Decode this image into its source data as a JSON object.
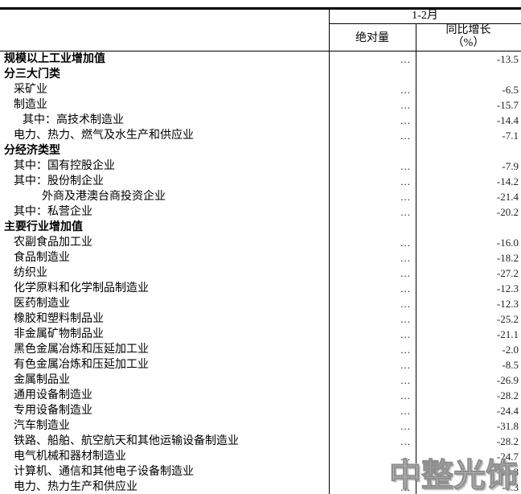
{
  "header": {
    "period": "1-2月",
    "col_absolute": "绝对量",
    "col_growth_line1": "同比增长",
    "col_growth_line2": "（%）"
  },
  "table": {
    "rows": [
      {
        "label": "规模以上工业增加值",
        "indent": 0,
        "bold": true,
        "abs": "...",
        "growth": "-13.5"
      },
      {
        "label": "分三大门类",
        "indent": 0,
        "bold": true,
        "abs": "",
        "growth": ""
      },
      {
        "label": "采矿业",
        "indent": 1,
        "bold": false,
        "abs": "...",
        "growth": "-6.5"
      },
      {
        "label": "制造业",
        "indent": 1,
        "bold": false,
        "abs": "...",
        "growth": "-15.7"
      },
      {
        "label": "其中：高技术制造业",
        "indent": 2,
        "bold": false,
        "abs": "...",
        "growth": "-14.4"
      },
      {
        "label": "电力、热力、燃气及水生产和供应业",
        "indent": 1,
        "bold": false,
        "abs": "...",
        "growth": "-7.1"
      },
      {
        "label": "分经济类型",
        "indent": 0,
        "bold": true,
        "abs": "",
        "growth": ""
      },
      {
        "label": "其中：国有控股企业",
        "indent": 1,
        "bold": false,
        "abs": "...",
        "growth": "-7.9"
      },
      {
        "label": "其中：股份制企业",
        "indent": 1,
        "bold": false,
        "abs": "...",
        "growth": "-14.2"
      },
      {
        "label": "外商及港澳台商投资企业",
        "indent": 3,
        "bold": false,
        "abs": "...",
        "growth": "-21.4"
      },
      {
        "label": "其中：私营企业",
        "indent": 1,
        "bold": false,
        "abs": "...",
        "growth": "-20.2"
      },
      {
        "label": "主要行业增加值",
        "indent": 0,
        "bold": true,
        "abs": "",
        "growth": ""
      },
      {
        "label": "农副食品加工业",
        "indent": 1,
        "bold": false,
        "abs": "...",
        "growth": "-16.0"
      },
      {
        "label": "食品制造业",
        "indent": 1,
        "bold": false,
        "abs": "...",
        "growth": "-18.2"
      },
      {
        "label": "纺织业",
        "indent": 1,
        "bold": false,
        "abs": "...",
        "growth": "-27.2"
      },
      {
        "label": "化学原料和化学制品制造业",
        "indent": 1,
        "bold": false,
        "abs": "...",
        "growth": "-12.3"
      },
      {
        "label": "医药制造业",
        "indent": 1,
        "bold": false,
        "abs": "...",
        "growth": "-12.3"
      },
      {
        "label": "橡胶和塑料制品业",
        "indent": 1,
        "bold": false,
        "abs": "...",
        "growth": "-25.2"
      },
      {
        "label": "非金属矿物制品业",
        "indent": 1,
        "bold": false,
        "abs": "...",
        "growth": "-21.1"
      },
      {
        "label": "黑色金属冶炼和压延加工业",
        "indent": 1,
        "bold": false,
        "abs": "...",
        "growth": "-2.0"
      },
      {
        "label": "有色金属冶炼和压延加工业",
        "indent": 1,
        "bold": false,
        "abs": "...",
        "growth": "-8.5"
      },
      {
        "label": "金属制品业",
        "indent": 1,
        "bold": false,
        "abs": "...",
        "growth": "-26.9"
      },
      {
        "label": "通用设备制造业",
        "indent": 1,
        "bold": false,
        "abs": "...",
        "growth": "-28.2"
      },
      {
        "label": "专用设备制造业",
        "indent": 1,
        "bold": false,
        "abs": "...",
        "growth": "-24.4"
      },
      {
        "label": "汽车制造业",
        "indent": 1,
        "bold": false,
        "abs": "...",
        "growth": "-31.8"
      },
      {
        "label": "铁路、船舶、航空航天和其他运输设备制造业",
        "indent": 1,
        "bold": false,
        "abs": "...",
        "growth": "-28.2"
      },
      {
        "label": "电气机械和器材制造业",
        "indent": 1,
        "bold": false,
        "abs": "...",
        "growth": "-24.7"
      },
      {
        "label": "计算机、通信和其他电子设备制造业",
        "indent": 1,
        "bold": false,
        "abs": "...",
        "growth": "-13.8"
      },
      {
        "label": "电力、热力生产和供应业",
        "indent": 1,
        "bold": false,
        "abs": "...",
        "growth": "-7.3"
      }
    ]
  },
  "watermark": {
    "text": "中整光饰"
  },
  "colors": {
    "line": "#000000",
    "text": "#000000",
    "value_text": "#222222",
    "watermark_fill": "#c6c6c6",
    "watermark_stroke": "#8a8a8a"
  }
}
